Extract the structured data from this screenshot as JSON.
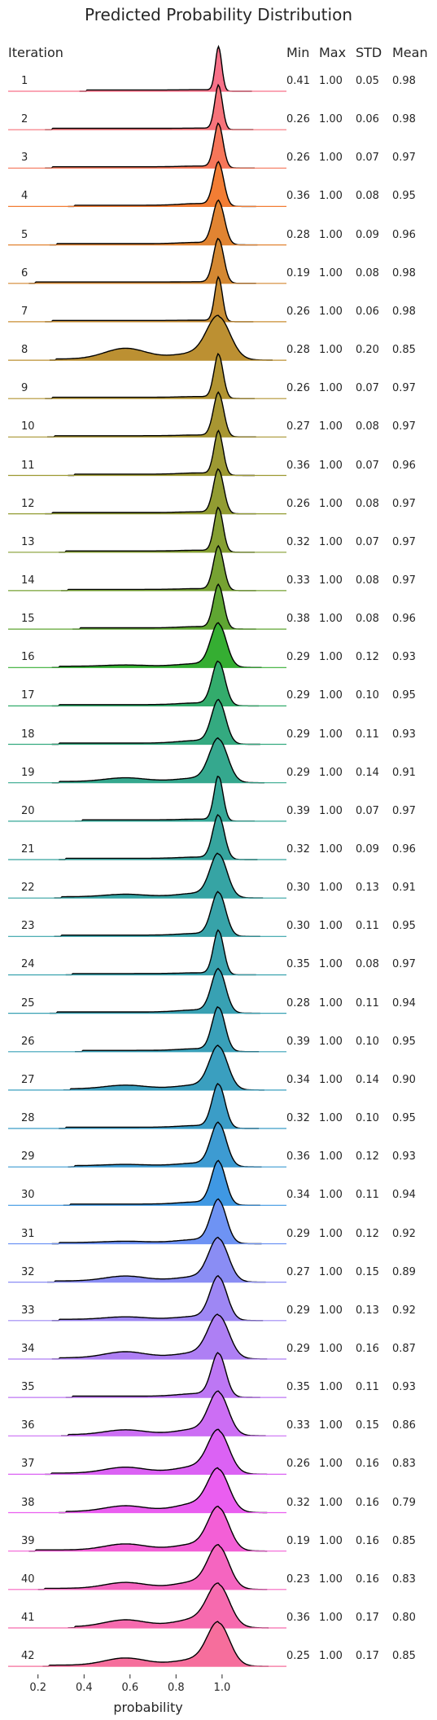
{
  "chart_data": {
    "type": "ridgeline",
    "title": "Predicted Probability Distribution",
    "xlabel": "probability",
    "ylabel": "Iteration",
    "xlim": [
      0.07,
      1.28
    ],
    "xticks": [
      "0.2",
      "0.4",
      "0.6",
      "0.8",
      "1.0"
    ],
    "xtick_values": [
      0.2,
      0.4,
      0.6,
      0.8,
      1.0
    ],
    "stat_columns": [
      "Min",
      "Max",
      "STD",
      "Mean"
    ],
    "rows": [
      {
        "iteration": "1",
        "min": "0.41",
        "max": "1.00",
        "std": "0.05",
        "mean": "0.98",
        "color": "#f77189"
      },
      {
        "iteration": "2",
        "min": "0.26",
        "max": "1.00",
        "std": "0.06",
        "mean": "0.98",
        "color": "#f6737a"
      },
      {
        "iteration": "3",
        "min": "0.26",
        "max": "1.00",
        "std": "0.07",
        "mean": "0.97",
        "color": "#f67659"
      },
      {
        "iteration": "4",
        "min": "0.36",
        "max": "1.00",
        "std": "0.08",
        "mean": "0.95",
        "color": "#f27d34"
      },
      {
        "iteration": "5",
        "min": "0.28",
        "max": "1.00",
        "std": "0.09",
        "mean": "0.96",
        "color": "#e18432"
      },
      {
        "iteration": "6",
        "min": "0.19",
        "max": "1.00",
        "std": "0.08",
        "mean": "0.98",
        "color": "#d48832"
      },
      {
        "iteration": "7",
        "min": "0.26",
        "max": "1.00",
        "std": "0.06",
        "mean": "0.98",
        "color": "#c88d32"
      },
      {
        "iteration": "8",
        "min": "0.28",
        "max": "1.00",
        "std": "0.20",
        "mean": "0.85",
        "color": "#bc9032"
      },
      {
        "iteration": "9",
        "min": "0.26",
        "max": "1.00",
        "std": "0.07",
        "mean": "0.97",
        "color": "#b29432"
      },
      {
        "iteration": "10",
        "min": "0.27",
        "max": "1.00",
        "std": "0.08",
        "mean": "0.97",
        "color": "#a89632"
      },
      {
        "iteration": "11",
        "min": "0.36",
        "max": "1.00",
        "std": "0.07",
        "mean": "0.96",
        "color": "#9d9932"
      },
      {
        "iteration": "12",
        "min": "0.26",
        "max": "1.00",
        "std": "0.08",
        "mean": "0.97",
        "color": "#929c32"
      },
      {
        "iteration": "13",
        "min": "0.32",
        "max": "1.00",
        "std": "0.07",
        "mean": "0.97",
        "color": "#859f32"
      },
      {
        "iteration": "14",
        "min": "0.33",
        "max": "1.00",
        "std": "0.08",
        "mean": "0.97",
        "color": "#76a232"
      },
      {
        "iteration": "15",
        "min": "0.38",
        "max": "1.00",
        "std": "0.08",
        "mean": "0.96",
        "color": "#5fa632"
      },
      {
        "iteration": "16",
        "min": "0.29",
        "max": "1.00",
        "std": "0.12",
        "mean": "0.93",
        "color": "#35ae32"
      },
      {
        "iteration": "17",
        "min": "0.29",
        "max": "1.00",
        "std": "0.10",
        "mean": "0.95",
        "color": "#33ac6c"
      },
      {
        "iteration": "18",
        "min": "0.29",
        "max": "1.00",
        "std": "0.11",
        "mean": "0.93",
        "color": "#34aa80"
      },
      {
        "iteration": "19",
        "min": "0.29",
        "max": "1.00",
        "std": "0.14",
        "mean": "0.91",
        "color": "#35a88e"
      },
      {
        "iteration": "20",
        "min": "0.39",
        "max": "1.00",
        "std": "0.07",
        "mean": "0.97",
        "color": "#35a797"
      },
      {
        "iteration": "21",
        "min": "0.32",
        "max": "1.00",
        "std": "0.09",
        "mean": "0.96",
        "color": "#36a59e"
      },
      {
        "iteration": "22",
        "min": "0.30",
        "max": "1.00",
        "std": "0.13",
        "mean": "0.91",
        "color": "#36a4a4"
      },
      {
        "iteration": "23",
        "min": "0.30",
        "max": "1.00",
        "std": "0.11",
        "mean": "0.95",
        "color": "#37a3a9"
      },
      {
        "iteration": "24",
        "min": "0.35",
        "max": "1.00",
        "std": "0.08",
        "mean": "0.97",
        "color": "#38a2ae"
      },
      {
        "iteration": "25",
        "min": "0.28",
        "max": "1.00",
        "std": "0.11",
        "mean": "0.94",
        "color": "#38a1b3"
      },
      {
        "iteration": "26",
        "min": "0.39",
        "max": "1.00",
        "std": "0.10",
        "mean": "0.95",
        "color": "#39a0b9"
      },
      {
        "iteration": "27",
        "min": "0.34",
        "max": "1.00",
        "std": "0.14",
        "mean": "0.90",
        "color": "#3a9fbf"
      },
      {
        "iteration": "28",
        "min": "0.32",
        "max": "1.00",
        "std": "0.10",
        "mean": "0.95",
        "color": "#3b9dc7"
      },
      {
        "iteration": "29",
        "min": "0.36",
        "max": "1.00",
        "std": "0.12",
        "mean": "0.93",
        "color": "#3d9bd2"
      },
      {
        "iteration": "30",
        "min": "0.34",
        "max": "1.00",
        "std": "0.11",
        "mean": "0.94",
        "color": "#3f98e3"
      },
      {
        "iteration": "31",
        "min": "0.29",
        "max": "1.00",
        "std": "0.12",
        "mean": "0.92",
        "color": "#6e93f4"
      },
      {
        "iteration": "32",
        "min": "0.27",
        "max": "1.00",
        "std": "0.15",
        "mean": "0.89",
        "color": "#8a8df4"
      },
      {
        "iteration": "33",
        "min": "0.29",
        "max": "1.00",
        "std": "0.13",
        "mean": "0.92",
        "color": "#9e87f4"
      },
      {
        "iteration": "34",
        "min": "0.29",
        "max": "1.00",
        "std": "0.16",
        "mean": "0.87",
        "color": "#ae7ff4"
      },
      {
        "iteration": "35",
        "min": "0.35",
        "max": "1.00",
        "std": "0.11",
        "mean": "0.93",
        "color": "#bd77f4"
      },
      {
        "iteration": "36",
        "min": "0.33",
        "max": "1.00",
        "std": "0.15",
        "mean": "0.86",
        "color": "#cc6ef4"
      },
      {
        "iteration": "37",
        "min": "0.26",
        "max": "1.00",
        "std": "0.16",
        "mean": "0.83",
        "color": "#db62f4"
      },
      {
        "iteration": "38",
        "min": "0.32",
        "max": "1.00",
        "std": "0.16",
        "mean": "0.79",
        "color": "#ea5ef0"
      },
      {
        "iteration": "39",
        "min": "0.19",
        "max": "1.00",
        "std": "0.16",
        "mean": "0.85",
        "color": "#f35fd6"
      },
      {
        "iteration": "40",
        "min": "0.23",
        "max": "1.00",
        "std": "0.16",
        "mean": "0.83",
        "color": "#f565c0"
      },
      {
        "iteration": "41",
        "min": "0.36",
        "max": "1.00",
        "std": "0.17",
        "mean": "0.80",
        "color": "#f66aae"
      },
      {
        "iteration": "42",
        "min": "0.25",
        "max": "1.00",
        "std": "0.17",
        "mean": "0.85",
        "color": "#f66e9c"
      }
    ]
  }
}
